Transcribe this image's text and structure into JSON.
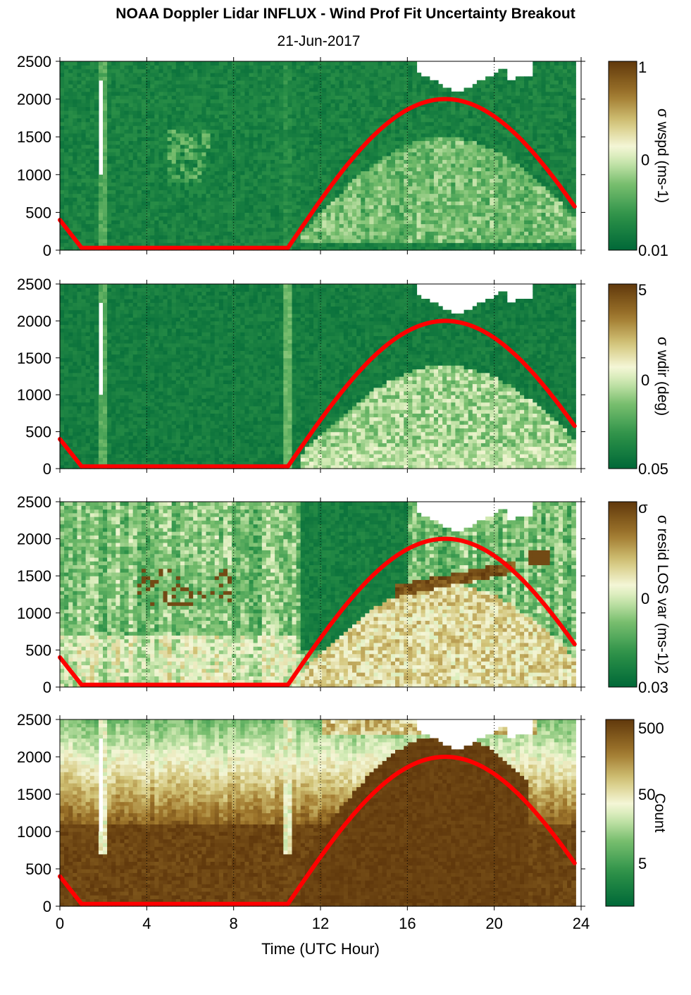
{
  "title": "NOAA Doppler Lidar INFLUX - Wind Prof Fit Uncertainty Breakout",
  "subtitle": "21-Jun-2017",
  "xlabel": "Time (UTC Hour)",
  "colors": {
    "sun_curve": "#ff0000",
    "dark_green": "#006838",
    "pale": "#f0f4dc",
    "dark_brown": "#5e3508"
  },
  "chart_data": [
    {
      "type": "heatmap",
      "panel": 1,
      "colorbar_label": "σ wspd (ms-1)",
      "colorbar_ticks": [
        "1",
        "0",
        "0.01"
      ],
      "x_ticks": [
        0,
        4,
        8,
        12,
        16,
        20,
        24
      ],
      "y_ticks": [
        0,
        500,
        1000,
        1500,
        2000,
        2500
      ],
      "xlim": [
        0,
        24
      ],
      "ylim": [
        0,
        2500
      ],
      "description_values": "mostly low uncertainty (dark green) with lighter values midday above 500 m",
      "sun_curve_x": [
        0,
        1,
        10.5,
        17.75,
        23.75
      ],
      "sun_curve_y": [
        400,
        30,
        30,
        2000,
        560
      ]
    },
    {
      "type": "heatmap",
      "panel": 2,
      "colorbar_label": "σ wdir (deg)",
      "colorbar_ticks": [
        "5",
        "0",
        "0.05"
      ],
      "x_ticks": [
        0,
        4,
        8,
        12,
        16,
        20,
        24
      ],
      "y_ticks": [
        0,
        500,
        1000,
        1500,
        2000,
        2500
      ],
      "xlim": [
        0,
        24
      ],
      "ylim": [
        0,
        2500
      ]
    },
    {
      "type": "heatmap",
      "panel": 3,
      "colorbar_label": "σ resid LOS var (ms-1)2",
      "colorbar_ticks": [
        "σ",
        "0",
        "0.03"
      ],
      "x_ticks": [
        0,
        4,
        8,
        12,
        16,
        20,
        24
      ],
      "y_ticks": [
        0,
        500,
        1000,
        1500,
        2000,
        2500
      ],
      "xlim": [
        0,
        24
      ],
      "ylim": [
        0,
        2500
      ]
    },
    {
      "type": "heatmap",
      "panel": 4,
      "colorbar_label": "Count",
      "colorbar_ticks": [
        "500",
        "50",
        "5"
      ],
      "x_ticks": [
        0,
        4,
        8,
        12,
        16,
        20,
        24
      ],
      "y_ticks": [
        0,
        500,
        1000,
        1500,
        2000,
        2500
      ],
      "xlim": [
        0,
        24
      ],
      "ylim": [
        0,
        2500
      ]
    }
  ]
}
